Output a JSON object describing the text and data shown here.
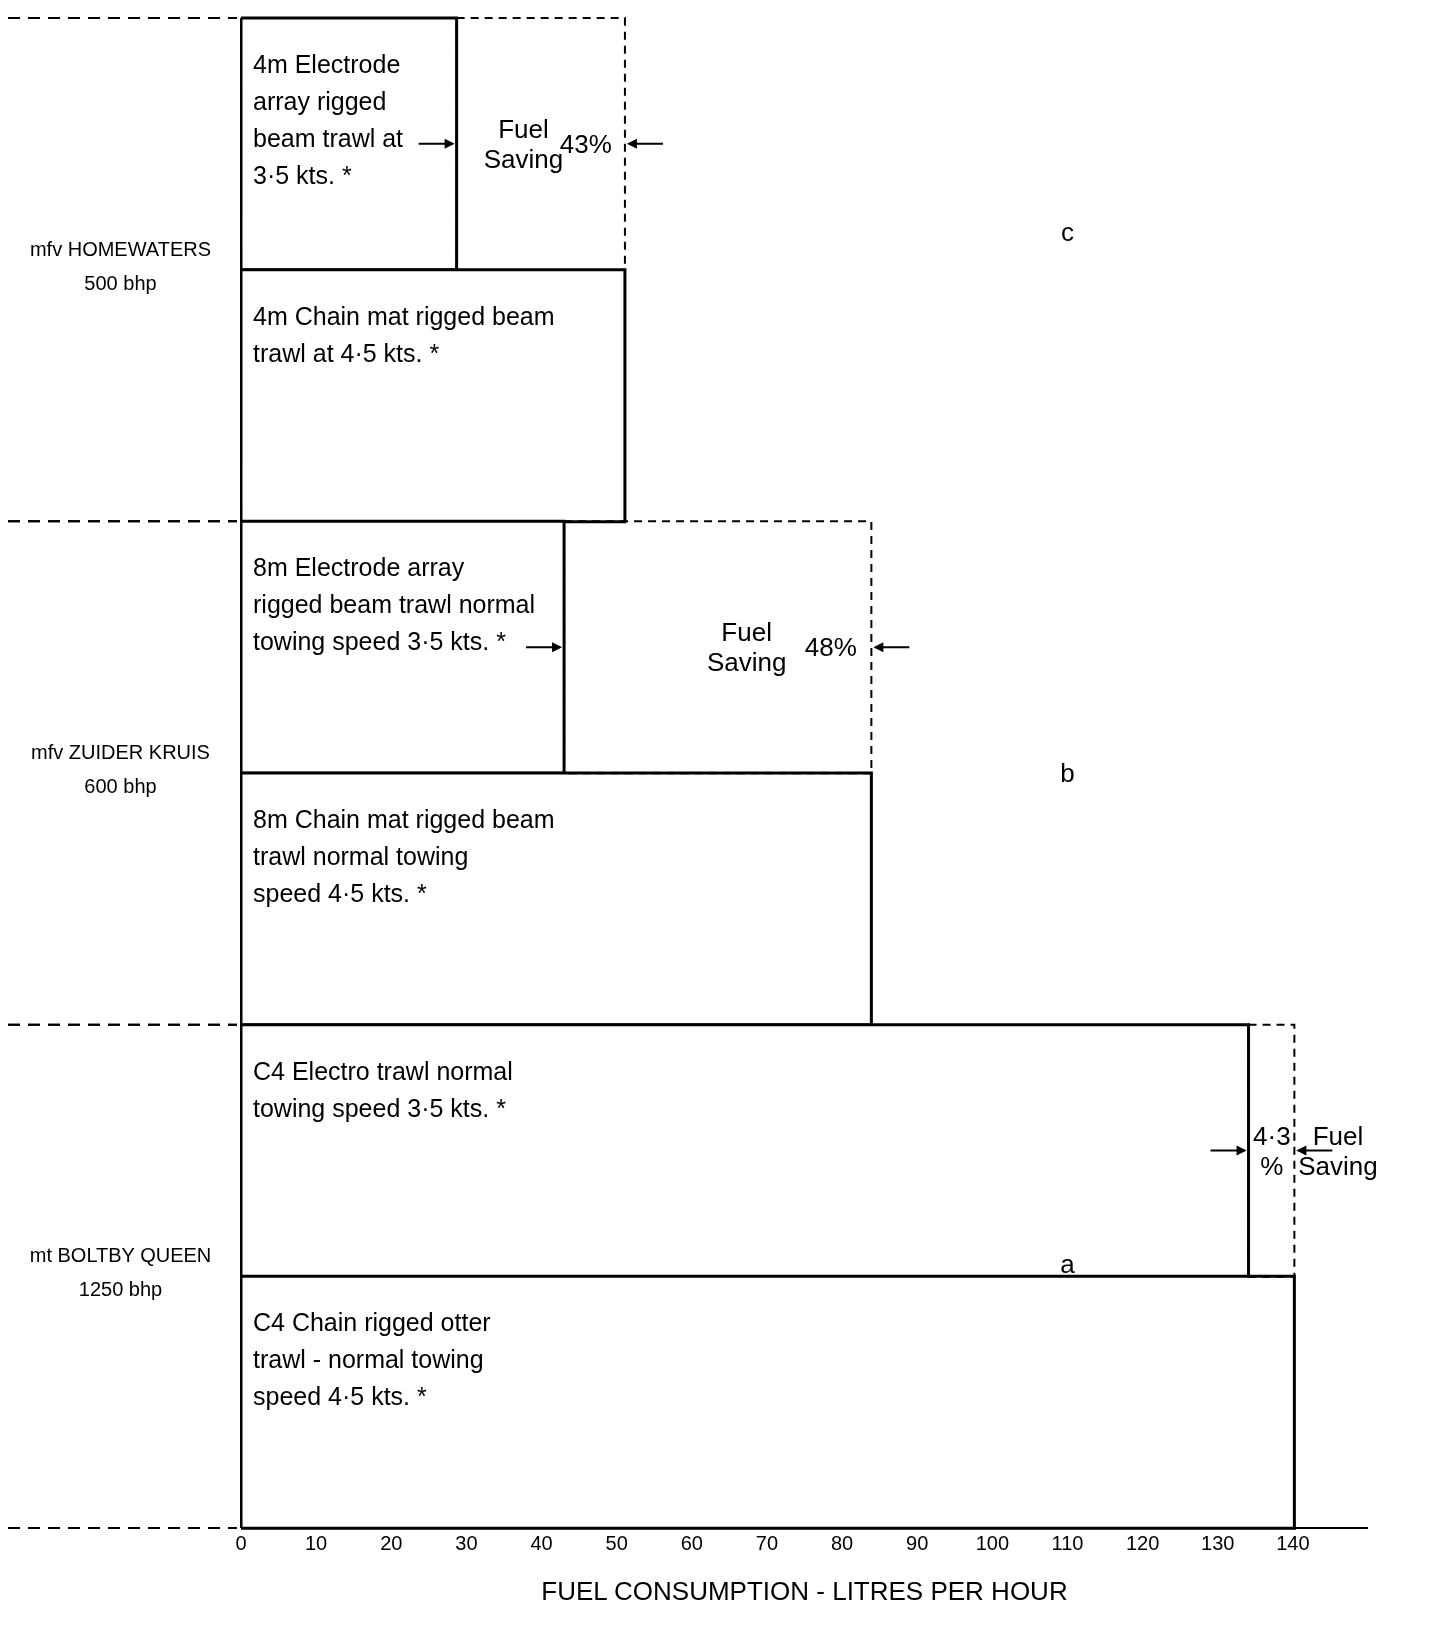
{
  "chart_data": {
    "type": "bar",
    "orientation": "horizontal",
    "stacked": true,
    "xlabel": "FUEL CONSUMPTION - LITRES PER HOUR",
    "categories": [
      "4m Electrode array rigged beam trawl at 3·5 kts. *",
      "4m Chain mat rigged beam trawl at 4·5 kts. *",
      "8m Electrode array rigged beam trawl normal towing speed 3·5 kts. *",
      "8m Chain mat rigged beam trawl normal towing speed 4·5 kts. *",
      "C4 Electro trawl normal towing speed 3·5 kts. *",
      "C4 Chain rigged otter trawl - normal towing speed 4·5 kts. *"
    ],
    "series": [
      {
        "color": "#000000",
        "line_style": "solid",
        "values": [
          28.7,
          51.1,
          43.0,
          83.9,
          134.1,
          140.2
        ]
      },
      {
        "color": "#000000",
        "line_style": "dashed",
        "values": [
          22.4,
          null,
          40.9,
          null,
          6.1,
          null
        ]
      }
    ],
    "xlim": [
      0,
      150
    ],
    "xticks": [
      0,
      10,
      20,
      30,
      40,
      50,
      60,
      70,
      80,
      90,
      100,
      110,
      120,
      130,
      140
    ],
    "annotations": [
      "mfv HOMEWATERS\n500 bhp",
      "mfv ZUIDER KRUIS\n600 bhp",
      "mt BOLTBY QUEEN\n1250 bhp",
      "Fuel\nSaving",
      "43%",
      "Fuel\nSaving",
      "48%",
      "4·3\n%",
      "Fuel\nSaving",
      "c",
      "b",
      "a"
    ]
  }
}
